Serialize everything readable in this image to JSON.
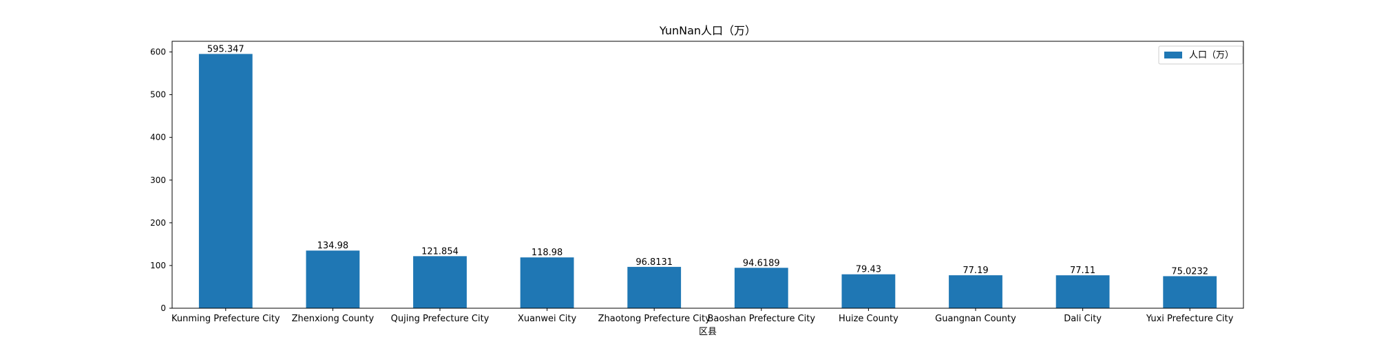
{
  "chart_data": {
    "type": "bar",
    "title": "YunNan人口（万）",
    "xlabel": "区县",
    "ylabel": "",
    "ylim": [
      0,
      625
    ],
    "yticks": [
      0,
      100,
      200,
      300,
      400,
      500,
      600
    ],
    "grid": false,
    "legend_position": "top-right",
    "categories": [
      "Kunming Prefecture City",
      "Zhenxiong County",
      "Qujing Prefecture City",
      "Xuanwei City",
      "Zhaotong Prefecture City",
      "Baoshan Prefecture City",
      "Huize County",
      "Guangnan County",
      "Dali City",
      "Yuxi Prefecture City"
    ],
    "series": [
      {
        "name": "人口（万）",
        "color": "#1f77b4",
        "values": [
          595.347,
          134.98,
          121.854,
          118.98,
          96.8131,
          94.6189,
          79.43,
          77.19,
          77.11,
          75.0232
        ],
        "value_labels": [
          "595.347",
          "134.98",
          "121.854",
          "118.98",
          "96.8131",
          "94.6189",
          "79.43",
          "77.19",
          "77.11",
          "75.0232"
        ]
      }
    ]
  }
}
